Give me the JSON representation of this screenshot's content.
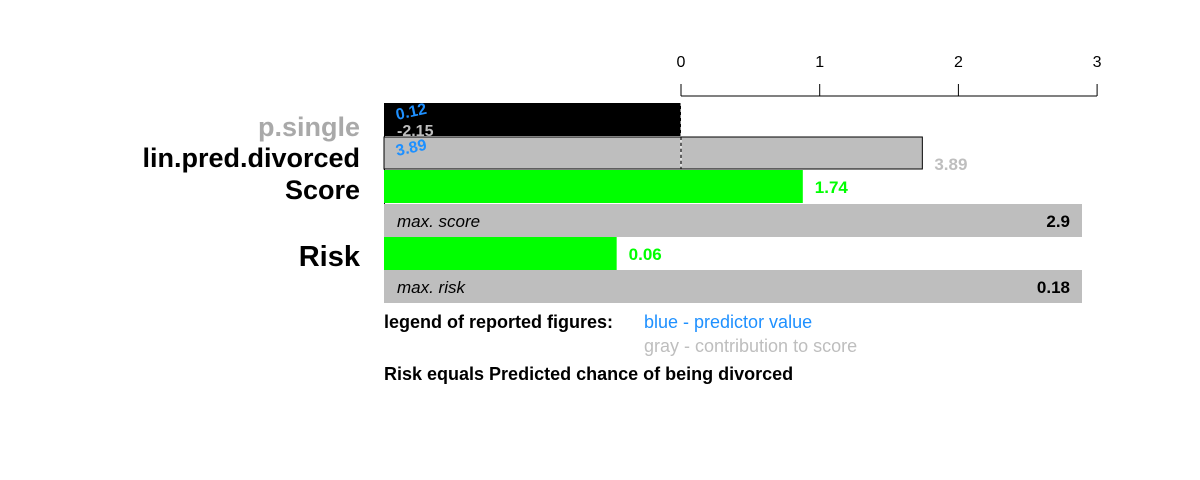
{
  "chart_data": {
    "type": "bar",
    "axis": {
      "ticks": [
        0,
        1,
        2,
        3
      ],
      "xlim": [
        -2.15,
        3
      ]
    },
    "rows": [
      {
        "label": "p.single",
        "label_color": "#a9a9a9",
        "bar_start": -2.15,
        "bar_end": 0,
        "bar_color": "#000000",
        "predictor_value": "0.12",
        "contribution": "-2.15"
      },
      {
        "label": "lin.pred.divorced",
        "label_color": "#000000",
        "bar_start": 0,
        "bar_end": 1.74,
        "bar_color": "#bebebe",
        "predictor_value": "3.89",
        "contribution": "3.89"
      },
      {
        "label": "Score",
        "label_color": "#000000",
        "value": 1.74,
        "value_label": "1.74",
        "bar_color": "#00ff00",
        "max_label": "max. score",
        "max_value": 2.9,
        "max_value_label": "2.9"
      },
      {
        "label": "Risk",
        "label_color": "#000000",
        "value": 0.06,
        "value_label": "0.06",
        "bar_color": "#00ff00",
        "max_label": "max. risk",
        "max_value": 0.18,
        "max_value_label": "0.18"
      }
    ],
    "legend": {
      "heading": "legend of reported figures:",
      "blue": "blue - predictor value",
      "gray": "gray - contribution to score"
    },
    "footnote": "Risk equals Predicted chance of being divorced",
    "colors": {
      "predictor": "#1e90ff",
      "contribution": "#bebebe",
      "score": "#00ff00",
      "max_bar": "#bebebe"
    }
  }
}
